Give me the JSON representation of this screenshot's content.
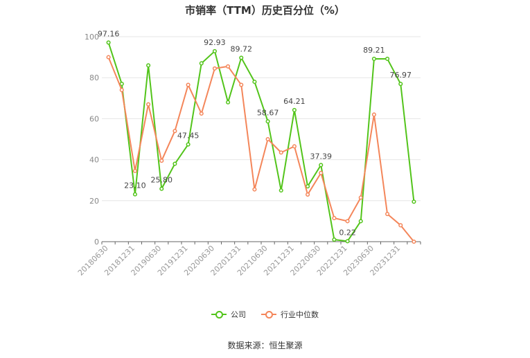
{
  "chart_data": {
    "type": "line",
    "title": "市销率（TTM）历史百分位（%）",
    "x": [
      "20180630",
      "20180930",
      "20181231",
      "20190331",
      "20190630",
      "20190930",
      "20191231",
      "20200331",
      "20200630",
      "20200930",
      "20201231",
      "20210331",
      "20210630",
      "20210930",
      "20211231",
      "20220331",
      "20220630",
      "20220930",
      "20221231",
      "20230331",
      "20230630",
      "20230930",
      "20231231",
      "20240331"
    ],
    "x_tick_labels": [
      "20180630",
      "20181231",
      "20190630",
      "20191231",
      "20200630",
      "20201231",
      "20210630",
      "20211231",
      "20220630",
      "20221231",
      "20230630",
      "20231231"
    ],
    "ylim": [
      0,
      100
    ],
    "yticks": [
      0,
      20,
      40,
      60,
      80,
      100
    ],
    "grid": true,
    "legend_position": "bottom",
    "series": [
      {
        "name": "公司",
        "color": "#52c41a",
        "values": [
          97.16,
          77,
          23.1,
          86,
          25.8,
          38,
          47.45,
          87,
          92.93,
          68,
          89.72,
          78,
          58.67,
          25,
          64.21,
          27,
          37.39,
          1,
          0.22,
          10,
          89.21,
          89.2,
          76.97,
          19.5
        ]
      },
      {
        "name": "行业中位数",
        "color": "#f4865a",
        "values": [
          90,
          74,
          34.5,
          67,
          39.5,
          54,
          76.5,
          62.5,
          84.5,
          85.5,
          76.5,
          25.5,
          50,
          43.5,
          46.5,
          23,
          33.5,
          11.5,
          10,
          21.5,
          62,
          13.5,
          8,
          0
        ]
      }
    ],
    "data_labels": [
      {
        "index": 0,
        "text": "97.16"
      },
      {
        "index": 2,
        "text": "23.10"
      },
      {
        "index": 4,
        "text": "25.80"
      },
      {
        "index": 6,
        "text": "47.45"
      },
      {
        "index": 8,
        "text": "92.93"
      },
      {
        "index": 10,
        "text": "89.72"
      },
      {
        "index": 12,
        "text": "58.67"
      },
      {
        "index": 14,
        "text": "64.21"
      },
      {
        "index": 16,
        "text": "37.39"
      },
      {
        "index": 18,
        "text": "0.22"
      },
      {
        "index": 20,
        "text": "89.21"
      },
      {
        "index": 22,
        "text": "76.97"
      }
    ]
  },
  "legend": {
    "company": "公司",
    "industry": "行业中位数"
  },
  "source_text": "数据来源：恒生聚源"
}
